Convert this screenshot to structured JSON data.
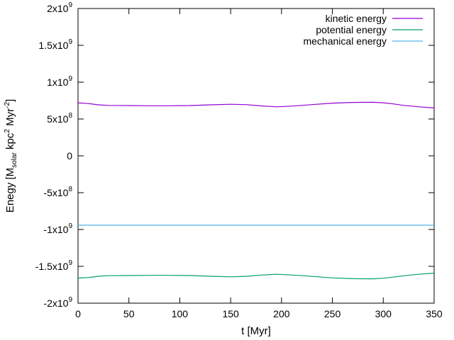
{
  "chart_data": {
    "type": "line",
    "xlabel": "t [Myr]",
    "ylabel": {
      "base": "Enegy [M",
      "sub": "solar",
      "mid": " kpc",
      "sup1": "2",
      "mid2": " Myr",
      "sup2": "-2",
      "end": "]"
    },
    "xlim": [
      0,
      350
    ],
    "ylim": [
      -2000000000,
      2000000000
    ],
    "x_ticks": [
      {
        "value": 0,
        "label": "0"
      },
      {
        "value": 50,
        "label": "50"
      },
      {
        "value": 100,
        "label": "100"
      },
      {
        "value": 150,
        "label": "150"
      },
      {
        "value": 200,
        "label": "200"
      },
      {
        "value": 250,
        "label": "250"
      },
      {
        "value": 300,
        "label": "300"
      },
      {
        "value": 350,
        "label": "350"
      }
    ],
    "y_ticks": [
      {
        "value": 2000000000,
        "mant": "2x10",
        "exp": "9"
      },
      {
        "value": 1500000000,
        "mant": "1.5x10",
        "exp": "9"
      },
      {
        "value": 1000000000,
        "mant": "1x10",
        "exp": "9"
      },
      {
        "value": 500000000,
        "mant": "5x10",
        "exp": "8"
      },
      {
        "value": 0,
        "mant": "0",
        "exp": ""
      },
      {
        "value": -500000000,
        "mant": "-5x10",
        "exp": "8"
      },
      {
        "value": -1000000000,
        "mant": "-1x10",
        "exp": "9"
      },
      {
        "value": -1500000000,
        "mant": "-1.5x10",
        "exp": "9"
      },
      {
        "value": -2000000000,
        "mant": "-2x10",
        "exp": "9"
      }
    ],
    "grid": false,
    "legend_position": "top-right",
    "series": [
      {
        "name": "kinetic energy",
        "color": "#9400d3",
        "x": [
          0,
          10,
          20,
          30,
          50,
          70,
          90,
          110,
          130,
          150,
          165,
          180,
          195,
          210,
          230,
          250,
          270,
          290,
          300,
          310,
          320,
          335,
          350
        ],
        "y": [
          720000000,
          710000000,
          692000000,
          685000000,
          683000000,
          680000000,
          680000000,
          683000000,
          692000000,
          700000000,
          695000000,
          678000000,
          665000000,
          675000000,
          695000000,
          715000000,
          725000000,
          727000000,
          720000000,
          705000000,
          685000000,
          665000000,
          650000000
        ]
      },
      {
        "name": "potential energy",
        "color": "#009e73",
        "x": [
          0,
          10,
          20,
          30,
          50,
          70,
          90,
          110,
          130,
          150,
          165,
          180,
          195,
          210,
          230,
          250,
          270,
          290,
          300,
          310,
          320,
          335,
          350
        ],
        "y": [
          -1660000000,
          -1652000000,
          -1635000000,
          -1627000000,
          -1625000000,
          -1622000000,
          -1622000000,
          -1625000000,
          -1635000000,
          -1642000000,
          -1636000000,
          -1618000000,
          -1608000000,
          -1617000000,
          -1637000000,
          -1657000000,
          -1667000000,
          -1669000000,
          -1662000000,
          -1646000000,
          -1628000000,
          -1608000000,
          -1592000000
        ]
      },
      {
        "name": "mechanical energy",
        "color": "#56b4e9",
        "x": [
          0,
          350
        ],
        "y": [
          -941000000,
          -941000000
        ]
      }
    ]
  }
}
